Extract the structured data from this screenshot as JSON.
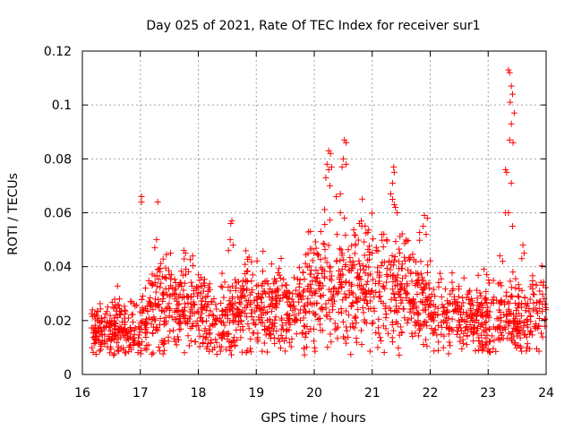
{
  "chart_data": {
    "type": "scatter",
    "title": "Day 025 of 2021, Rate Of TEC Index for receiver sur1",
    "xlabel": "GPS time / hours",
    "ylabel": "ROTI / TECUs",
    "xlim": [
      16,
      24
    ],
    "ylim": [
      0,
      0.12
    ],
    "x_ticks": [
      16,
      17,
      18,
      19,
      20,
      21,
      22,
      23,
      24
    ],
    "x_tick_labels": [
      "16",
      "17",
      "18",
      "19",
      "20",
      "21",
      "22",
      "23",
      "24"
    ],
    "y_ticks": [
      0,
      0.02,
      0.04,
      0.06,
      0.08,
      0.1,
      0.12
    ],
    "y_tick_labels": [
      "0",
      "0.02",
      "0.04",
      "0.06",
      "0.08",
      "0.1",
      "0.12"
    ],
    "grid": true,
    "marker": "plus",
    "color": "#ff0000",
    "series": [
      {
        "name": "ROTI",
        "profile_x": [
          16.15,
          16.5,
          16.8,
          17.0,
          17.2,
          17.5,
          17.8,
          18.0,
          18.3,
          18.5,
          18.8,
          19.0,
          19.3,
          19.6,
          19.9,
          20.2,
          20.5,
          20.8,
          21.0,
          21.3,
          21.6,
          21.9,
          22.2,
          22.5,
          22.8,
          23.0,
          23.3,
          23.6,
          23.8,
          24.0
        ],
        "profile_y": [
          0.017,
          0.016,
          0.018,
          0.016,
          0.024,
          0.026,
          0.025,
          0.026,
          0.018,
          0.02,
          0.027,
          0.025,
          0.026,
          0.024,
          0.03,
          0.033,
          0.032,
          0.034,
          0.036,
          0.033,
          0.03,
          0.026,
          0.021,
          0.022,
          0.02,
          0.022,
          0.022,
          0.02,
          0.023,
          0.025
        ],
        "highlights": [
          {
            "x": 17.02,
            "y": 0.066
          },
          {
            "x": 17.02,
            "y": 0.064
          },
          {
            "x": 17.3,
            "y": 0.064
          },
          {
            "x": 17.28,
            "y": 0.05
          },
          {
            "x": 17.25,
            "y": 0.047
          },
          {
            "x": 17.75,
            "y": 0.046
          },
          {
            "x": 17.78,
            "y": 0.045
          },
          {
            "x": 18.0,
            "y": 0.037
          },
          {
            "x": 18.05,
            "y": 0.036
          },
          {
            "x": 18.58,
            "y": 0.057
          },
          {
            "x": 18.56,
            "y": 0.056
          },
          {
            "x": 18.55,
            "y": 0.05
          },
          {
            "x": 18.6,
            "y": 0.048
          },
          {
            "x": 18.52,
            "y": 0.046
          },
          {
            "x": 18.32,
            "y": 0.0075
          },
          {
            "x": 18.28,
            "y": 0.01
          },
          {
            "x": 17.2,
            "y": 0.0075
          },
          {
            "x": 17.22,
            "y": 0.008
          },
          {
            "x": 20.25,
            "y": 0.083
          },
          {
            "x": 20.28,
            "y": 0.082
          },
          {
            "x": 20.22,
            "y": 0.078
          },
          {
            "x": 20.3,
            "y": 0.077
          },
          {
            "x": 20.25,
            "y": 0.076
          },
          {
            "x": 20.2,
            "y": 0.073
          },
          {
            "x": 20.27,
            "y": 0.07
          },
          {
            "x": 20.52,
            "y": 0.087
          },
          {
            "x": 20.55,
            "y": 0.086
          },
          {
            "x": 20.5,
            "y": 0.08
          },
          {
            "x": 20.55,
            "y": 0.078
          },
          {
            "x": 20.48,
            "y": 0.077
          },
          {
            "x": 20.45,
            "y": 0.067
          },
          {
            "x": 20.38,
            "y": 0.066
          },
          {
            "x": 20.45,
            "y": 0.06
          },
          {
            "x": 20.52,
            "y": 0.058
          },
          {
            "x": 20.78,
            "y": 0.056
          },
          {
            "x": 20.82,
            "y": 0.055
          },
          {
            "x": 21.37,
            "y": 0.077
          },
          {
            "x": 21.38,
            "y": 0.075
          },
          {
            "x": 21.35,
            "y": 0.071
          },
          {
            "x": 21.32,
            "y": 0.067
          },
          {
            "x": 21.35,
            "y": 0.065
          },
          {
            "x": 21.38,
            "y": 0.063
          },
          {
            "x": 21.4,
            "y": 0.062
          },
          {
            "x": 21.43,
            "y": 0.06
          },
          {
            "x": 21.9,
            "y": 0.059
          },
          {
            "x": 21.95,
            "y": 0.058
          },
          {
            "x": 21.88,
            "y": 0.055
          },
          {
            "x": 21.93,
            "y": 0.052
          },
          {
            "x": 21.2,
            "y": 0.052
          },
          {
            "x": 21.25,
            "y": 0.05
          },
          {
            "x": 23.35,
            "y": 0.113
          },
          {
            "x": 23.37,
            "y": 0.112
          },
          {
            "x": 23.4,
            "y": 0.107
          },
          {
            "x": 23.42,
            "y": 0.104
          },
          {
            "x": 23.38,
            "y": 0.101
          },
          {
            "x": 23.45,
            "y": 0.097
          },
          {
            "x": 23.4,
            "y": 0.093
          },
          {
            "x": 23.37,
            "y": 0.087
          },
          {
            "x": 23.43,
            "y": 0.086
          },
          {
            "x": 23.3,
            "y": 0.076
          },
          {
            "x": 23.32,
            "y": 0.075
          },
          {
            "x": 23.4,
            "y": 0.071
          },
          {
            "x": 23.3,
            "y": 0.06
          },
          {
            "x": 23.35,
            "y": 0.06
          },
          {
            "x": 23.42,
            "y": 0.055
          },
          {
            "x": 23.6,
            "y": 0.048
          },
          {
            "x": 23.62,
            "y": 0.045
          },
          {
            "x": 23.58,
            "y": 0.043
          },
          {
            "x": 23.2,
            "y": 0.044
          },
          {
            "x": 23.25,
            "y": 0.042
          },
          {
            "x": 22.95,
            "y": 0.011
          },
          {
            "x": 22.9,
            "y": 0.012
          },
          {
            "x": 16.75,
            "y": 0.008
          },
          {
            "x": 16.8,
            "y": 0.0085
          },
          {
            "x": 20.9,
            "y": 0.019
          },
          {
            "x": 21.0,
            "y": 0.045
          }
        ]
      }
    ]
  }
}
